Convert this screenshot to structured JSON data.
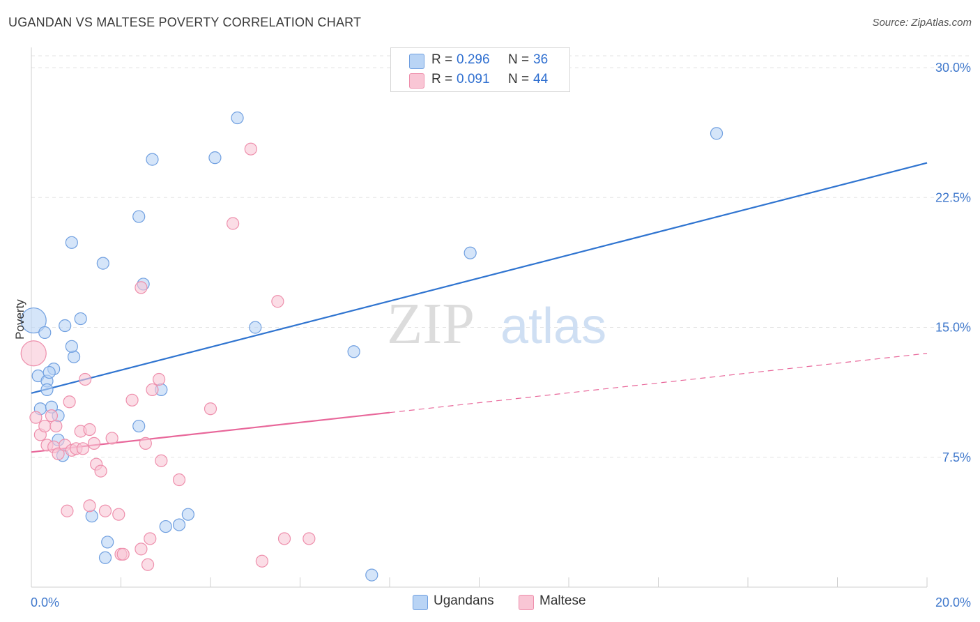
{
  "header": {
    "title": "UGANDAN VS MALTESE POVERTY CORRELATION CHART",
    "source": "Source: ZipAtlas.com"
  },
  "watermark": {
    "zip": "ZIP",
    "atlas": "atlas"
  },
  "legend": {
    "rows": [
      {
        "r_label": "R = ",
        "r_value": "0.296",
        "n_label": "N = ",
        "n_value": "36"
      },
      {
        "r_label": "R = ",
        "r_value": "0.091",
        "n_label": "N = ",
        "n_value": "44"
      }
    ],
    "series_names": [
      "Ugandans",
      "Maltese"
    ]
  },
  "colors": {
    "ugandans_fill": "#b9d4f5",
    "ugandans_stroke": "#6f9fe0",
    "ugandans_line": "#2f74d0",
    "maltese_fill": "#f9c6d5",
    "maltese_stroke": "#ee8fac",
    "maltese_line": "#e8679a",
    "axis_label": "#3f78cc",
    "grid": "#e3e3e3"
  },
  "chart_data": {
    "type": "scatter",
    "title": "UGANDAN VS MALTESE POVERTY CORRELATION CHART",
    "xlabel": "",
    "ylabel": "Poverty",
    "xlim": [
      0,
      20
    ],
    "ylim": [
      0,
      30
    ],
    "y_ticks": [
      {
        "value": 7.5,
        "label": "7.5%"
      },
      {
        "value": 15,
        "label": "15.0%"
      },
      {
        "value": 22.5,
        "label": "22.5%"
      },
      {
        "value": 30,
        "label": "30.0%"
      }
    ],
    "x_ticks": [
      {
        "value": 0,
        "label": "0.0%"
      },
      {
        "value": 20,
        "label": "20.0%"
      }
    ],
    "series": [
      {
        "name": "Ugandans",
        "r": 0.296,
        "n": 36,
        "trend": {
          "x0": 0,
          "y0": 11.2,
          "x1": 20,
          "y1": 24.5,
          "dashed_from": null
        },
        "points": [
          {
            "x": 0.05,
            "y": 15.4,
            "big": true
          },
          {
            "x": 0.3,
            "y": 14.7
          },
          {
            "x": 0.15,
            "y": 12.2
          },
          {
            "x": 0.5,
            "y": 12.6
          },
          {
            "x": 0.35,
            "y": 11.9
          },
          {
            "x": 0.6,
            "y": 9.9
          },
          {
            "x": 0.2,
            "y": 10.3
          },
          {
            "x": 0.45,
            "y": 10.4
          },
          {
            "x": 0.6,
            "y": 8.5
          },
          {
            "x": 0.7,
            "y": 7.6
          },
          {
            "x": 0.95,
            "y": 13.3
          },
          {
            "x": 1.1,
            "y": 15.5
          },
          {
            "x": 0.75,
            "y": 15.1
          },
          {
            "x": 0.9,
            "y": 13.9
          },
          {
            "x": 0.4,
            "y": 12.4
          },
          {
            "x": 0.35,
            "y": 11.4
          },
          {
            "x": 0.9,
            "y": 19.9
          },
          {
            "x": 1.6,
            "y": 18.7
          },
          {
            "x": 2.4,
            "y": 21.4
          },
          {
            "x": 2.7,
            "y": 24.7
          },
          {
            "x": 2.5,
            "y": 17.5
          },
          {
            "x": 2.4,
            "y": 9.3
          },
          {
            "x": 2.9,
            "y": 11.4
          },
          {
            "x": 3.0,
            "y": 3.5
          },
          {
            "x": 3.3,
            "y": 3.6
          },
          {
            "x": 3.5,
            "y": 4.2
          },
          {
            "x": 1.35,
            "y": 4.1
          },
          {
            "x": 1.7,
            "y": 2.6
          },
          {
            "x": 1.65,
            "y": 1.7
          },
          {
            "x": 4.1,
            "y": 24.8
          },
          {
            "x": 4.6,
            "y": 27.1
          },
          {
            "x": 5.0,
            "y": 15.0
          },
          {
            "x": 7.2,
            "y": 13.6
          },
          {
            "x": 7.6,
            "y": 0.7
          },
          {
            "x": 9.8,
            "y": 19.3
          },
          {
            "x": 15.3,
            "y": 26.2
          }
        ]
      },
      {
        "name": "Maltese",
        "r": 0.091,
        "n": 44,
        "trend": {
          "x0": 0,
          "y0": 7.8,
          "x1": 20,
          "y1": 13.5,
          "dashed_from": 8
        },
        "points": [
          {
            "x": 0.05,
            "y": 13.5,
            "big": true
          },
          {
            "x": 0.1,
            "y": 9.8
          },
          {
            "x": 0.2,
            "y": 8.8
          },
          {
            "x": 0.3,
            "y": 9.3
          },
          {
            "x": 0.35,
            "y": 8.2
          },
          {
            "x": 0.45,
            "y": 9.9
          },
          {
            "x": 0.5,
            "y": 8.1
          },
          {
            "x": 0.55,
            "y": 9.3
          },
          {
            "x": 0.6,
            "y": 7.7
          },
          {
            "x": 0.75,
            "y": 8.2
          },
          {
            "x": 0.9,
            "y": 7.9
          },
          {
            "x": 1.0,
            "y": 8.0
          },
          {
            "x": 0.85,
            "y": 10.7
          },
          {
            "x": 1.1,
            "y": 9.0
          },
          {
            "x": 1.2,
            "y": 12.0
          },
          {
            "x": 1.3,
            "y": 9.1
          },
          {
            "x": 1.4,
            "y": 8.3
          },
          {
            "x": 1.15,
            "y": 8.0
          },
          {
            "x": 1.45,
            "y": 7.1
          },
          {
            "x": 1.55,
            "y": 6.7
          },
          {
            "x": 1.8,
            "y": 8.6
          },
          {
            "x": 2.25,
            "y": 10.8
          },
          {
            "x": 2.45,
            "y": 17.3
          },
          {
            "x": 2.55,
            "y": 8.3
          },
          {
            "x": 2.7,
            "y": 11.4
          },
          {
            "x": 2.85,
            "y": 12.0
          },
          {
            "x": 2.9,
            "y": 7.3
          },
          {
            "x": 3.3,
            "y": 6.2
          },
          {
            "x": 0.8,
            "y": 4.4
          },
          {
            "x": 1.3,
            "y": 4.7
          },
          {
            "x": 1.65,
            "y": 4.4
          },
          {
            "x": 1.95,
            "y": 4.2
          },
          {
            "x": 2.0,
            "y": 1.9
          },
          {
            "x": 2.45,
            "y": 2.2
          },
          {
            "x": 2.6,
            "y": 1.3
          },
          {
            "x": 2.65,
            "y": 2.8
          },
          {
            "x": 2.05,
            "y": 1.9
          },
          {
            "x": 4.0,
            "y": 10.3
          },
          {
            "x": 4.5,
            "y": 21.0
          },
          {
            "x": 4.9,
            "y": 25.3
          },
          {
            "x": 5.15,
            "y": 1.5
          },
          {
            "x": 5.5,
            "y": 16.5
          },
          {
            "x": 5.65,
            "y": 2.8
          },
          {
            "x": 6.2,
            "y": 2.8
          }
        ]
      }
    ]
  }
}
